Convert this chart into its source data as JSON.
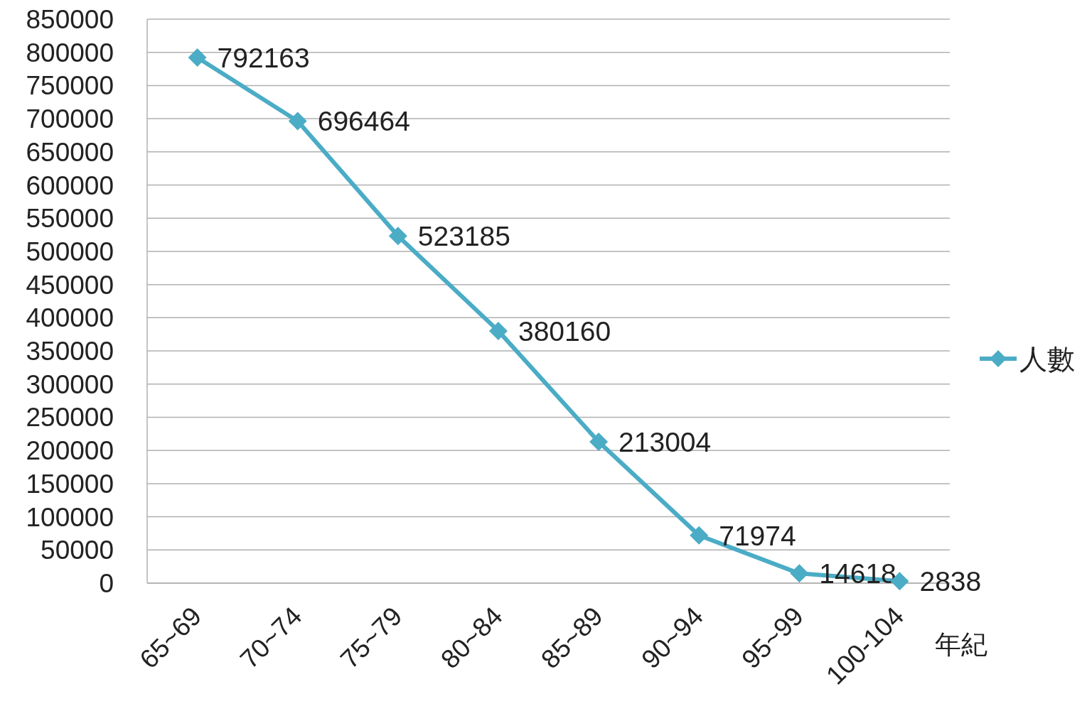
{
  "chart_data": {
    "type": "line",
    "categories": [
      "65~69",
      "70~74",
      "75~79",
      "80~84",
      "85~89",
      "90~94",
      "95~99",
      "100-104"
    ],
    "series": [
      {
        "name": "人數",
        "color": "#4bacc6",
        "values": [
          792163,
          696464,
          523185,
          380160,
          213004,
          71974,
          14618,
          2838
        ]
      }
    ],
    "ylim": [
      0,
      850000
    ],
    "yticks": [
      0,
      50000,
      100000,
      150000,
      200000,
      250000,
      300000,
      350000,
      400000,
      450000,
      500000,
      550000,
      600000,
      650000,
      700000,
      750000,
      800000,
      850000
    ],
    "xlabel": "年紀",
    "data_labels": true,
    "legend": "right",
    "marker": "diamond",
    "grid": "y"
  }
}
